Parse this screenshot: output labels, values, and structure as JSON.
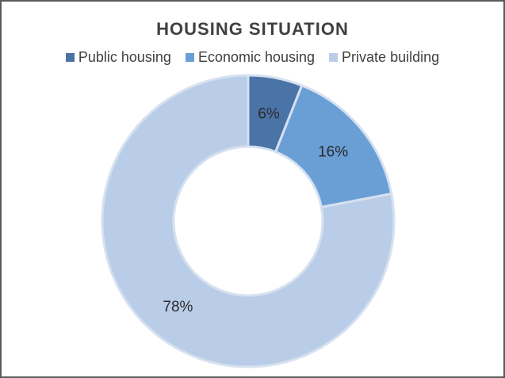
{
  "chart_data": {
    "type": "pie",
    "title": "HOUSING SITUATION",
    "categories": [
      "Public housing",
      "Economic housing",
      "Private building"
    ],
    "values": [
      6,
      16,
      78
    ],
    "data_labels": [
      "6%",
      "16%",
      "78%"
    ],
    "colors": [
      "#4a73a8",
      "#6a9fd6",
      "#b9cde8"
    ],
    "donut": true,
    "legend_position": "top"
  }
}
